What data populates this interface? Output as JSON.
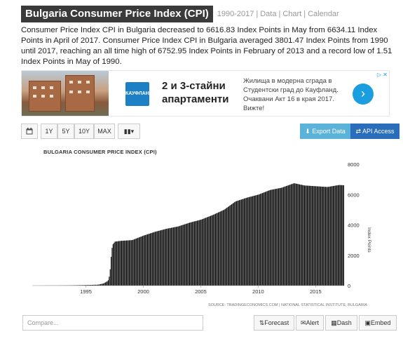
{
  "header": {
    "title": "Bulgaria Consumer Price Index (CPI)",
    "links": [
      "1990-2017",
      "Data",
      "Chart",
      "Calendar"
    ]
  },
  "description": "Consumer Price Index CPI in Bulgaria decreased to 6616.83 Index Points in May from 6634.11 Index Points in April of 2017. Consumer Price Index CPI in Bulgaria averaged 3801.47 Index Points from 1990 until 2017, reaching an all time high of 6752.95 Index Points in February of 2013 and a record low of 1.51 Index Points in May of 1990.",
  "ad": {
    "logo_text": "КАУФЛАНД",
    "headline": "2 и 3-стайни апартаменти",
    "text": "Жилища в модерна сграда в Студентски град до Кауфланд. Очаквани Акт 16 в края 2017. Вижте!",
    "arrow": "›",
    "choice": "▷ ✕"
  },
  "toolbar": {
    "calendar_icon": "calendar-icon",
    "btn_1y": "1Y",
    "btn_5y": "5Y",
    "btn_10y": "10Y",
    "btn_max": "MAX",
    "chart_type": "▮▮▾",
    "export_label": "⬇ Export Data",
    "api_label": "⇄ API Access"
  },
  "chart_data": {
    "type": "bar",
    "title": "BULGARIA CONSUMER PRICE INDEX (CPI)",
    "ylabel": "Index Points",
    "ylim": [
      0,
      8000
    ],
    "yticks": [
      0,
      2000,
      4000,
      6000,
      8000
    ],
    "xticks": [
      1995,
      2000,
      2005,
      2010,
      2015
    ],
    "xlim": [
      1990.33,
      2017.42
    ],
    "source": "SOURCE: TRADINGECONOMICS.COM | NATIONAL STATISTICAL INSTITUTE, BULGARIA",
    "color": "#111111",
    "x": [
      1990.4,
      1991.0,
      1992.0,
      1993.0,
      1994.0,
      1995.0,
      1996.0,
      1996.5,
      1996.9,
      1997.0,
      1997.1,
      1997.2,
      1997.3,
      1997.5,
      1998.0,
      1999.0,
      2000.0,
      2001.0,
      2002.0,
      2003.0,
      2004.0,
      2005.0,
      2006.0,
      2007.0,
      2008.0,
      2009.0,
      2010.0,
      2011.0,
      2012.0,
      2013.1,
      2014.0,
      2015.0,
      2016.0,
      2017.0,
      2017.4
    ],
    "y": [
      2,
      6,
      10,
      15,
      25,
      40,
      60,
      140,
      320,
      600,
      1200,
      2300,
      2700,
      2900,
      2950,
      3000,
      3300,
      3550,
      3750,
      3900,
      4150,
      4350,
      4650,
      5000,
      5550,
      5800,
      6000,
      6300,
      6450,
      6750,
      6600,
      6550,
      6500,
      6630,
      6617
    ]
  },
  "footer": {
    "compare_placeholder": "Compare...",
    "forecast_label": "⇅Forecast",
    "alert_label": "✉Alert",
    "dash_label": "▦Dash",
    "embed_label": "▣Embed"
  }
}
